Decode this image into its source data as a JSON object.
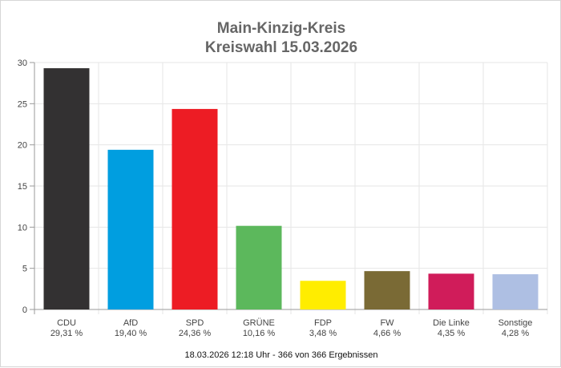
{
  "chart_data": {
    "type": "bar",
    "title": "Main-Kinzig-Kreis",
    "subtitle": "Kreiswahl 15.03.2026",
    "categories": [
      "CDU",
      "AfD",
      "SPD",
      "GRÜNE",
      "FDP",
      "FW",
      "Die Linke",
      "Sonstige"
    ],
    "value_labels": [
      "29,31 %",
      "19,40 %",
      "24,36 %",
      "10,16 %",
      "3,48 %",
      "4,66 %",
      "4,35 %",
      "4,28 %"
    ],
    "values": [
      29.31,
      19.4,
      24.36,
      10.16,
      3.48,
      4.66,
      4.35,
      4.28
    ],
    "colors": [
      "#333132",
      "#009ee0",
      "#ed1c24",
      "#5cb85c",
      "#ffed00",
      "#7a6a35",
      "#d01c5a",
      "#aebfe3"
    ],
    "ylim": [
      0,
      30
    ],
    "yticks": [
      "0",
      "5",
      "10",
      "15",
      "20",
      "25",
      "30"
    ],
    "grid": true,
    "legend": "none",
    "footer": "18.03.2026 12:18 Uhr - 366 von 366 Ergebnissen"
  }
}
